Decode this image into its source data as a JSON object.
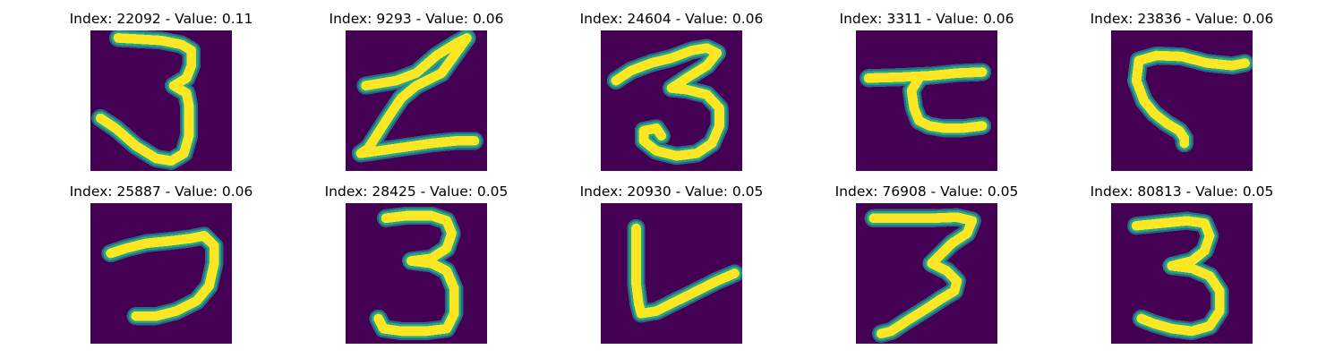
{
  "figure": {
    "colormap": {
      "background": "#440154",
      "edge_dark": "#2a788e",
      "edge_mid": "#22a884",
      "core": "#fde725"
    },
    "panels": [
      {
        "title": "Index: 22092 - Value: 0.11",
        "index": 22092,
        "value": 0.11,
        "digit_shape": "three"
      },
      {
        "title": "Index: 9293 - Value: 0.06",
        "index": 9293,
        "value": 0.06,
        "digit_shape": "z-like"
      },
      {
        "title": "Index: 24604 - Value: 0.06",
        "index": 24604,
        "value": 0.06,
        "digit_shape": "three"
      },
      {
        "title": "Index: 3311 - Value: 0.06",
        "index": 3311,
        "value": 0.06,
        "digit_shape": "tau-like"
      },
      {
        "title": "Index: 23836 - Value: 0.06",
        "index": 23836,
        "value": 0.06,
        "digit_shape": "hook"
      },
      {
        "title": "Index: 25887 - Value: 0.06",
        "index": 25887,
        "value": 0.06,
        "digit_shape": "seven-like"
      },
      {
        "title": "Index: 28425 - Value: 0.05",
        "index": 28425,
        "value": 0.05,
        "digit_shape": "three"
      },
      {
        "title": "Index: 20930 - Value: 0.05",
        "index": 20930,
        "value": 0.05,
        "digit_shape": "v-like"
      },
      {
        "title": "Index: 76908 - Value: 0.05",
        "index": 76908,
        "value": 0.05,
        "digit_shape": "three-slanted"
      },
      {
        "title": "Index: 80813 - Value: 0.05",
        "index": 80813,
        "value": 0.05,
        "digit_shape": "three"
      }
    ]
  }
}
